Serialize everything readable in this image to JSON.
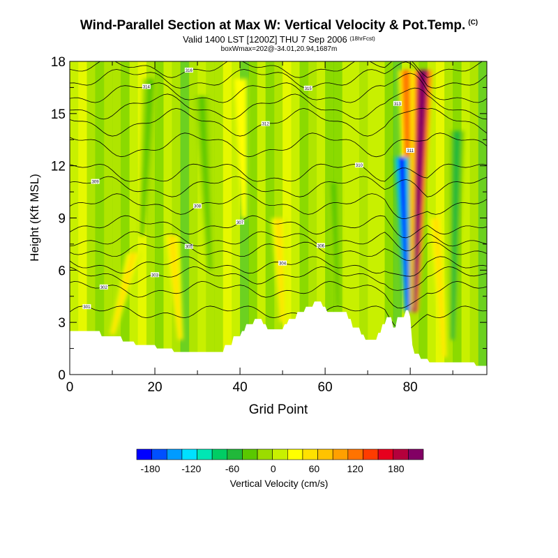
{
  "title": {
    "main": "Wind-Parallel Section at Max W: Vertical Velocity & Pot.Temp.",
    "copyright": "(C)",
    "valid": "Valid 1400 LST [1200Z] THU 7 Sep 2006",
    "forecast": "(18hrFcst)",
    "box": "boxWmax=202@-34.01,20.94,1687m"
  },
  "chart_data": {
    "type": "heatmap",
    "title": "Wind-Parallel Section at Max W: Vertical Velocity & Pot.Temp.",
    "xlabel": "Grid Point",
    "ylabel": "Height (Kft MSL)",
    "xlim": [
      0,
      98
    ],
    "ylim": [
      0,
      18
    ],
    "xticks": [
      0,
      20,
      40,
      60,
      80
    ],
    "yticks": [
      0,
      3,
      6,
      9,
      12,
      15,
      18
    ],
    "colorbar": {
      "label": "Vertical Velocity (cm/s)",
      "tick_labels": [
        "-180",
        "-120",
        "-60",
        "0",
        "60",
        "120",
        "180"
      ],
      "tick_values": [
        -180,
        -120,
        -60,
        0,
        60,
        120,
        180
      ],
      "range": [
        -200,
        220
      ],
      "colors": [
        "#0000ff",
        "#0050ff",
        "#009bff",
        "#00e1ff",
        "#00e6b4",
        "#00cd64",
        "#21b83a",
        "#5ac800",
        "#9bdc00",
        "#c8f000",
        "#ffff00",
        "#ffe100",
        "#ffc300",
        "#ffa000",
        "#ff7300",
        "#ff3c00",
        "#e6001e",
        "#b4003c",
        "#820064"
      ]
    },
    "terrain_kft": [
      {
        "x": 0,
        "h": 2.5
      },
      {
        "x": 7,
        "h": 2.5
      },
      {
        "x": 7.5,
        "h": 2.2
      },
      {
        "x": 12,
        "h": 2.2
      },
      {
        "x": 12.5,
        "h": 1.9
      },
      {
        "x": 15,
        "h": 1.9
      },
      {
        "x": 15.5,
        "h": 1.7
      },
      {
        "x": 20,
        "h": 1.7
      },
      {
        "x": 20.5,
        "h": 1.5
      },
      {
        "x": 24,
        "h": 1.5
      },
      {
        "x": 24.5,
        "h": 1.3
      },
      {
        "x": 36,
        "h": 1.3
      },
      {
        "x": 36.5,
        "h": 1.7
      },
      {
        "x": 38,
        "h": 1.7
      },
      {
        "x": 38.5,
        "h": 2.2
      },
      {
        "x": 40,
        "h": 2.2
      },
      {
        "x": 40.5,
        "h": 2.5
      },
      {
        "x": 41,
        "h": 2.5
      },
      {
        "x": 41.5,
        "h": 2.9
      },
      {
        "x": 43,
        "h": 2.9
      },
      {
        "x": 43.5,
        "h": 3.2
      },
      {
        "x": 45,
        "h": 3.2
      },
      {
        "x": 45.5,
        "h": 2.9
      },
      {
        "x": 46,
        "h": 2.9
      },
      {
        "x": 46.5,
        "h": 2.6
      },
      {
        "x": 50,
        "h": 2.6
      },
      {
        "x": 50.5,
        "h": 2.9
      },
      {
        "x": 51,
        "h": 2.9
      },
      {
        "x": 51.5,
        "h": 3.2
      },
      {
        "x": 53,
        "h": 3.2
      },
      {
        "x": 53.5,
        "h": 3.6
      },
      {
        "x": 55,
        "h": 3.6
      },
      {
        "x": 55.5,
        "h": 3.9
      },
      {
        "x": 57,
        "h": 3.9
      },
      {
        "x": 57.5,
        "h": 4.2
      },
      {
        "x": 59,
        "h": 4.2
      },
      {
        "x": 59.5,
        "h": 3.9
      },
      {
        "x": 60,
        "h": 3.9
      },
      {
        "x": 60.5,
        "h": 3.6
      },
      {
        "x": 65,
        "h": 3.6
      },
      {
        "x": 65.5,
        "h": 3.2
      },
      {
        "x": 66,
        "h": 3.2
      },
      {
        "x": 66.5,
        "h": 2.7
      },
      {
        "x": 68,
        "h": 2.7
      },
      {
        "x": 68.5,
        "h": 2.3
      },
      {
        "x": 69,
        "h": 2.3
      },
      {
        "x": 69.5,
        "h": 2.0
      },
      {
        "x": 72,
        "h": 2.0
      },
      {
        "x": 72.5,
        "h": 2.4
      },
      {
        "x": 73,
        "h": 2.4
      },
      {
        "x": 73.5,
        "h": 2.9
      },
      {
        "x": 74,
        "h": 2.9
      },
      {
        "x": 74.5,
        "h": 3.3
      },
      {
        "x": 75.5,
        "h": 3.3
      },
      {
        "x": 76,
        "h": 2.7
      },
      {
        "x": 76.5,
        "h": 2.7
      },
      {
        "x": 77,
        "h": 3.3
      },
      {
        "x": 78.5,
        "h": 3.3
      },
      {
        "x": 79,
        "h": 3.7
      },
      {
        "x": 79.5,
        "h": 3.7
      },
      {
        "x": 80,
        "h": 3.3
      },
      {
        "x": 80.5,
        "h": 1.7
      },
      {
        "x": 81,
        "h": 1.2
      },
      {
        "x": 82,
        "h": 1.2
      },
      {
        "x": 82.5,
        "h": 0.9
      },
      {
        "x": 84,
        "h": 0.9
      },
      {
        "x": 84.5,
        "h": 0.7
      },
      {
        "x": 95,
        "h": 0.7
      },
      {
        "x": 95.5,
        "h": 0.5
      },
      {
        "x": 98,
        "h": 0.5
      }
    ],
    "w_features": [
      {
        "kind": "updraft",
        "x0": 81,
        "h0": 3.6,
        "x1": 83,
        "h1": 17.5,
        "w": 205
      },
      {
        "kind": "updraft",
        "x0": 80,
        "h0": 3.8,
        "x1": 79,
        "h1": 17.5,
        "w": 120
      },
      {
        "kind": "downdraft",
        "x0": 79.3,
        "h0": 3.6,
        "x1": 78,
        "h1": 12.5,
        "w": -190
      },
      {
        "kind": "updraft",
        "x0": 10,
        "h0": 2.3,
        "x1": 15,
        "h1": 7,
        "w": 55
      },
      {
        "kind": "updraft",
        "x0": 50,
        "h0": 3,
        "x1": 49,
        "h1": 9,
        "w": 60
      },
      {
        "kind": "updraft",
        "x0": 26,
        "h0": 2,
        "x1": 24,
        "h1": 8,
        "w": 45
      },
      {
        "kind": "updraft",
        "x0": 88,
        "h0": 1,
        "x1": 86,
        "h1": 9,
        "w": 60
      },
      {
        "kind": "downdraft",
        "x0": 63,
        "h0": 4,
        "x1": 62,
        "h1": 11,
        "w": -35
      },
      {
        "kind": "downdraft",
        "x0": 90,
        "h0": 2,
        "x1": 91,
        "h1": 14,
        "w": -50
      },
      {
        "kind": "downdraft",
        "x0": 17,
        "h0": 8,
        "x1": 19,
        "h1": 17,
        "w": -35
      },
      {
        "kind": "downdraft",
        "x0": 33,
        "h0": 6,
        "x1": 31,
        "h1": 16,
        "w": -30
      },
      {
        "kind": "updraft",
        "x0": 41,
        "h0": 9,
        "x1": 40,
        "h1": 17,
        "w": 35
      }
    ],
    "theta_contours": [
      {
        "label": "301",
        "base": 3.6,
        "amp": 0.25,
        "label_x": 4
      },
      {
        "label": "302",
        "base": 4.9,
        "amp": 0.3,
        "label_x": 8
      },
      {
        "label": "303",
        "base": 5.7,
        "amp": 0.3,
        "label_x": 20
      },
      {
        "label": "304",
        "base": 6.3,
        "amp": 0.3,
        "label_x": 50
      },
      {
        "label": "305",
        "base": 7.2,
        "amp": 0.3,
        "label_x": 28
      },
      {
        "label": "306",
        "base": 7.8,
        "amp": 0.3,
        "label_x": 59
      },
      {
        "label": "307",
        "base": 8.6,
        "amp": 0.35,
        "label_x": 40
      },
      {
        "label": "308",
        "base": 9.8,
        "amp": 0.4,
        "label_x": 30
      },
      {
        "label": "309",
        "base": 10.8,
        "amp": 0.45,
        "label_x": 6
      },
      {
        "label": "310",
        "base": 11.6,
        "amp": 0.5,
        "label_x": 68
      },
      {
        "label": "311",
        "base": 13.2,
        "amp": 0.55,
        "label_x": 80
      },
      {
        "label": "312",
        "base": 14.5,
        "amp": 0.6,
        "label_x": 46
      },
      {
        "label": "313",
        "base": 15.4,
        "amp": 0.55,
        "label_x": 77
      },
      {
        "label": "314",
        "base": 16.2,
        "amp": 0.5,
        "label_x": 18
      },
      {
        "label": "315",
        "base": 17.0,
        "amp": 0.45,
        "label_x": 56
      },
      {
        "label": "316",
        "base": 17.6,
        "amp": 0.35,
        "label_x": 28
      }
    ]
  }
}
